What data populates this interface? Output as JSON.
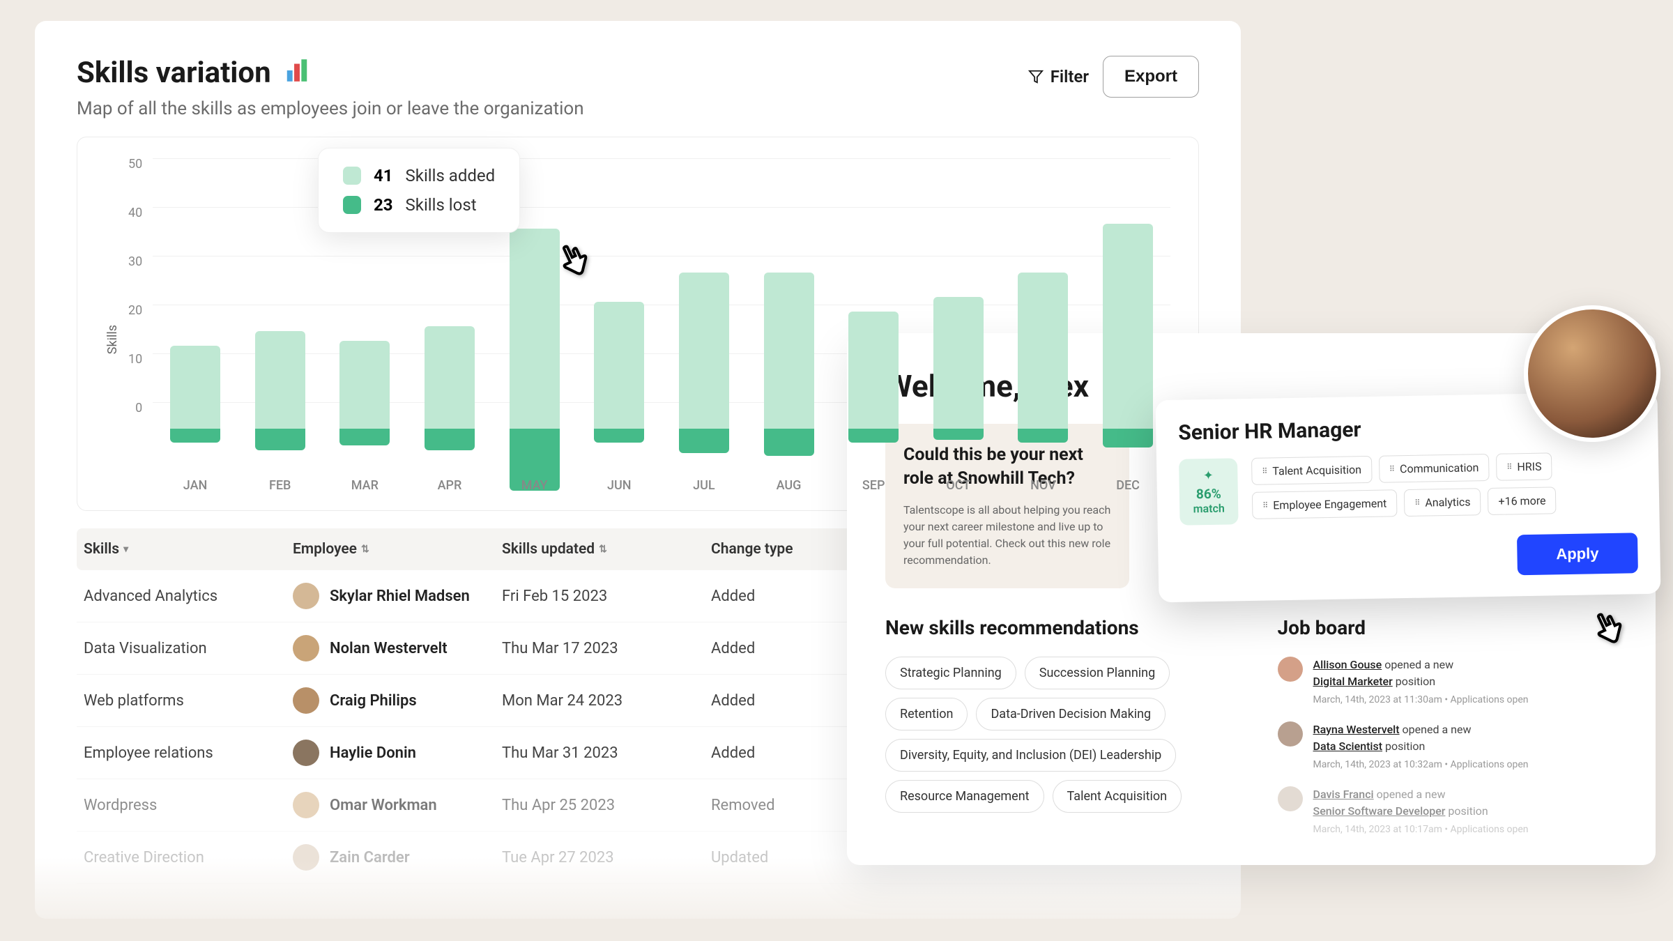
{
  "mainCard": {
    "title": "Skills variation",
    "subtitle": "Map of all the skills as employees join or leave the organization",
    "filterLabel": "Filter",
    "exportLabel": "Export"
  },
  "chart": {
    "type": "bar",
    "yAxisLabel": "Skills",
    "yTicks": [
      "50",
      "40",
      "30",
      "20",
      "10",
      "0"
    ],
    "ymax": 50,
    "colors": {
      "added": "#bfe8d3",
      "lost": "#45bb89",
      "grid": "#f0f0f0"
    },
    "bars": [
      {
        "label": "JAN",
        "added": 17,
        "lost": 5
      },
      {
        "label": "FEB",
        "added": 20,
        "lost": 8
      },
      {
        "label": "MAR",
        "added": 18,
        "lost": 6
      },
      {
        "label": "APR",
        "added": 21,
        "lost": 8
      },
      {
        "label": "MAY",
        "added": 41,
        "lost": 23
      },
      {
        "label": "JUN",
        "added": 26,
        "lost": 5
      },
      {
        "label": "JUL",
        "added": 32,
        "lost": 9
      },
      {
        "label": "AUG",
        "added": 32,
        "lost": 10
      },
      {
        "label": "SEP",
        "added": 24,
        "lost": 5
      },
      {
        "label": "OCT",
        "added": 27,
        "lost": 4
      },
      {
        "label": "NOV",
        "added": 32,
        "lost": 5
      },
      {
        "label": "DEC",
        "added": 42,
        "lost": 7
      }
    ],
    "tooltip": {
      "addedValue": "41",
      "addedLabel": "Skills added",
      "lostValue": "23",
      "lostLabel": "Skills lost"
    }
  },
  "table": {
    "headers": {
      "skills": "Skills",
      "employee": "Employee",
      "updated": "Skills updated",
      "changeType": "Change type"
    },
    "rows": [
      {
        "skill": "Advanced Analytics",
        "employee": "Skylar Rhiel Madsen",
        "date": "Fri Feb 15 2023",
        "change": "Added",
        "avatarColor": "#d4b896"
      },
      {
        "skill": "Data Visualization",
        "employee": "Nolan Westervelt",
        "date": "Thu Mar 17 2023",
        "change": "Added",
        "avatarColor": "#c9a478"
      },
      {
        "skill": "Web platforms",
        "employee": "Craig Philips",
        "date": "Mon Mar 24 2023",
        "change": "Added",
        "avatarColor": "#b89068"
      },
      {
        "skill": "Employee relations",
        "employee": "Haylie Donin",
        "date": "Thu Mar 31 2023",
        "change": "Added",
        "avatarColor": "#8a7560"
      },
      {
        "skill": "Wordpress",
        "employee": "Omar Workman",
        "date": "Thu Apr 25 2023",
        "change": "Removed",
        "avatarColor": "#d8b890"
      },
      {
        "skill": "Creative Direction",
        "employee": "Zain Carder",
        "date": "Tue Apr 27 2023",
        "change": "Updated",
        "avatarColor": "#c0a080"
      }
    ]
  },
  "welcome": {
    "title": "Welcome, Alex",
    "nextRole": {
      "heading": "Could this be your next role at Snowhill Tech?",
      "body": "Talentscope is all about helping you reach your next career milestone and live up to your full potential. Check out this new role recommendation."
    },
    "skillsRec": {
      "title": "New skills recommendations",
      "tags": [
        "Strategic Planning",
        "Succession Planning",
        "Retention",
        "Data-Driven Decision Making",
        "Diversity, Equity, and Inclusion (DEI) Leadership",
        "Resource Management",
        "Talent Acquisition"
      ]
    },
    "jobBoard": {
      "title": "Job board",
      "items": [
        {
          "person": "Allison Gouse",
          "action": "opened a new",
          "role": "Digital Marketer",
          "suffix": "position",
          "meta": "March, 14th, 2023 at 11:30am  •  Applications open",
          "avatarColor": "#d4a088"
        },
        {
          "person": "Rayna Westervelt",
          "action": "opened a new",
          "role": "Data Scientist",
          "suffix": "position",
          "meta": "March, 14th, 2023 at 10:32am  •  Applications open",
          "avatarColor": "#b8a090"
        },
        {
          "person": "Davis Franci",
          "action": "opened a new",
          "role": "Senior Software Developer",
          "suffix": "position",
          "meta": "March, 14th, 2023 at 10:17am  •  Applications open",
          "avatarColor": "#c8b8a8"
        }
      ]
    }
  },
  "hrCard": {
    "title": "Senior HR Manager",
    "matchPercent": "86%",
    "matchWord": "match",
    "tags": [
      "Talent Acquisition",
      "Communication",
      "HRIS",
      "Employee Engagement",
      "Analytics"
    ],
    "moreLabel": "+16 more",
    "applyLabel": "Apply"
  }
}
